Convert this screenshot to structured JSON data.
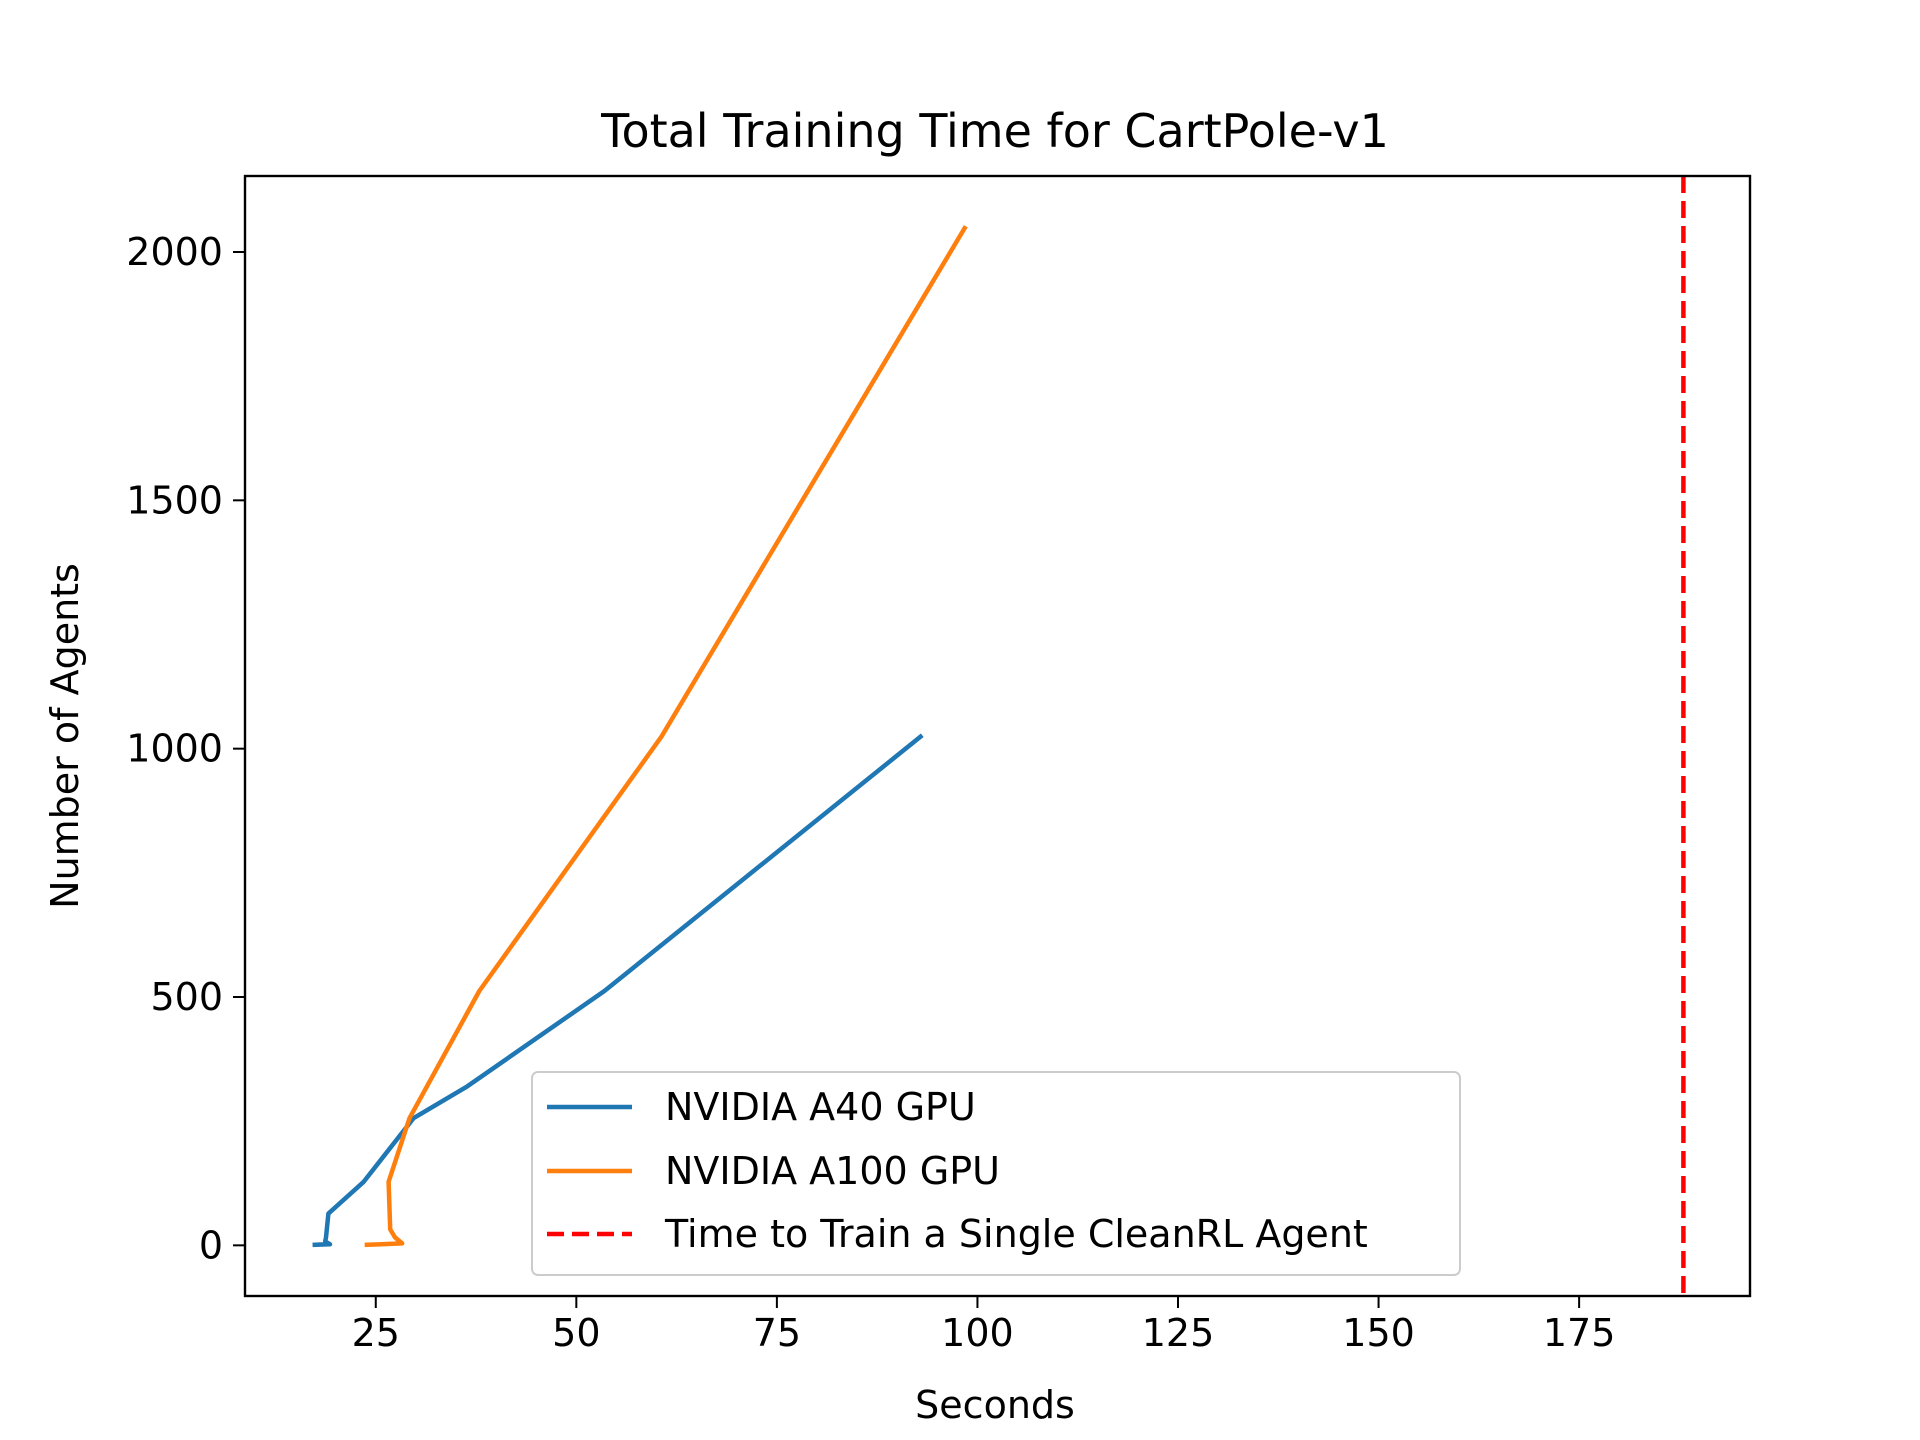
{
  "chart_data": {
    "type": "line",
    "title": "Total Training Time for CartPole-v1",
    "xlabel": "Seconds",
    "ylabel": "Number of Agents",
    "xlim": [
      8.7,
      196.3
    ],
    "ylim": [
      -102,
      2153
    ],
    "xticks": [
      25,
      50,
      75,
      100,
      125,
      150,
      175
    ],
    "yticks": [
      0,
      500,
      1000,
      1500,
      2000
    ],
    "grid": false,
    "legend_position": "lower-center",
    "series": [
      {
        "name": "NVIDIA A40 GPU",
        "color": "#1f77b4",
        "style": "solid",
        "x": [
          17.4,
          19.3,
          18.7,
          18.8,
          19.1,
          23.5,
          29.7,
          36.4,
          53.5,
          92.9
        ],
        "y": [
          1,
          2,
          8,
          16,
          64,
          128,
          256,
          320,
          512,
          1024
        ]
      },
      {
        "name": "NVIDIA A100 GPU",
        "color": "#ff7f0e",
        "style": "solid",
        "x": [
          23.9,
          28.3,
          27.4,
          26.8,
          26.6,
          29.2,
          37.9,
          60.6,
          98.4
        ],
        "y": [
          1,
          4,
          16,
          32,
          128,
          256,
          512,
          1024,
          2048
        ]
      }
    ],
    "reference_lines": [
      {
        "name": "Time to Train a Single CleanRL Agent",
        "orientation": "vertical",
        "x": 188,
        "color": "#ff0000",
        "style": "dashed"
      }
    ]
  }
}
